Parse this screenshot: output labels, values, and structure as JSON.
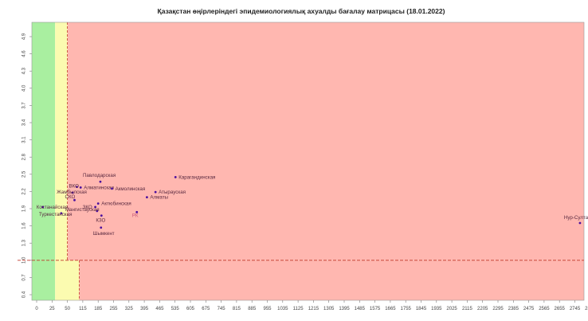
{
  "chart_data": {
    "type": "scatter",
    "title": "Қазақстан өңірлеріндегі эпидемиологиялық ахуалды бағалау матрицасы  (18.01.2022)",
    "xlabel": "",
    "ylabel": "",
    "xlim": [
      0,
      2900
    ],
    "ylim": [
      0.4,
      5.1
    ],
    "x_ticks": [
      0,
      25,
      50,
      115,
      185,
      255,
      325,
      395,
      465,
      535,
      605,
      675,
      745,
      815,
      885,
      955,
      1035,
      1125,
      1215,
      1305,
      1395,
      1485,
      1575,
      1665,
      1755,
      1845,
      1935,
      2025,
      2115,
      2205,
      2295,
      2385,
      2475,
      2565,
      2655,
      2745,
      2835
    ],
    "y_ticks": [
      0.4,
      0.7,
      1.0,
      1.3,
      1.6,
      1.9,
      2.2,
      2.5,
      2.8,
      3.1,
      3.4,
      3.7,
      4.0,
      4.3,
      4.6,
      4.9
    ],
    "threshold_y": 1.0,
    "zones": [
      {
        "color": "#a9efa0",
        "x": [
          0,
          30
        ],
        "y": [
          0.4,
          5.1
        ]
      },
      {
        "color": "#fbfbb0",
        "x": [
          30,
          100
        ],
        "y": [
          0.4,
          1.0
        ]
      },
      {
        "color": "#fbfbb0",
        "x": [
          30,
          50
        ],
        "y": [
          1.0,
          5.1
        ]
      },
      {
        "color": "#ffb7b0",
        "x": [
          100,
          2900
        ],
        "y": [
          0.4,
          1.0
        ]
      },
      {
        "color": "#ffb7b0",
        "x": [
          50,
          2900
        ],
        "y": [
          1.0,
          5.1
        ]
      }
    ],
    "colors": {
      "point": "#4a0f9e",
      "threshold": "#c0392b",
      "rk_label": "#c85a78"
    },
    "points": [
      {
        "name": "Павлодарская",
        "x": 195,
        "y": 2.37
      },
      {
        "name": "Карагандинская",
        "x": 537,
        "y": 2.45
      },
      {
        "name": "ВКО",
        "x": 90,
        "y": 2.28
      },
      {
        "name": "Алматинская",
        "x": 106,
        "y": 2.27
      },
      {
        "name": "Акмолинская",
        "x": 248,
        "y": 2.25
      },
      {
        "name": "Жамбылская",
        "x": 72,
        "y": 2.18
      },
      {
        "name": "Атырауская",
        "x": 446,
        "y": 2.19
      },
      {
        "name": "Алматы",
        "x": 407,
        "y": 2.1
      },
      {
        "name": "СКО",
        "x": 80,
        "y": 2.05
      },
      {
        "name": "Актюбинская",
        "x": 185,
        "y": 1.99
      },
      {
        "name": "ЗКО",
        "x": 172,
        "y": 1.93
      },
      {
        "name": "Костанайская",
        "x": 10,
        "y": 1.93
      },
      {
        "name": "Мангистауская",
        "x": 180,
        "y": 1.86
      },
      {
        "name": "РК",
        "x": 361,
        "y": 1.84
      },
      {
        "name": "Туркестанская",
        "x": 40,
        "y": 1.82
      },
      {
        "name": "КЗО",
        "x": 200,
        "y": 1.78
      },
      {
        "name": "Шымкент",
        "x": 198,
        "y": 1.57
      },
      {
        "name": "Нур-Султан",
        "x": 2775,
        "y": 1.65
      }
    ]
  }
}
